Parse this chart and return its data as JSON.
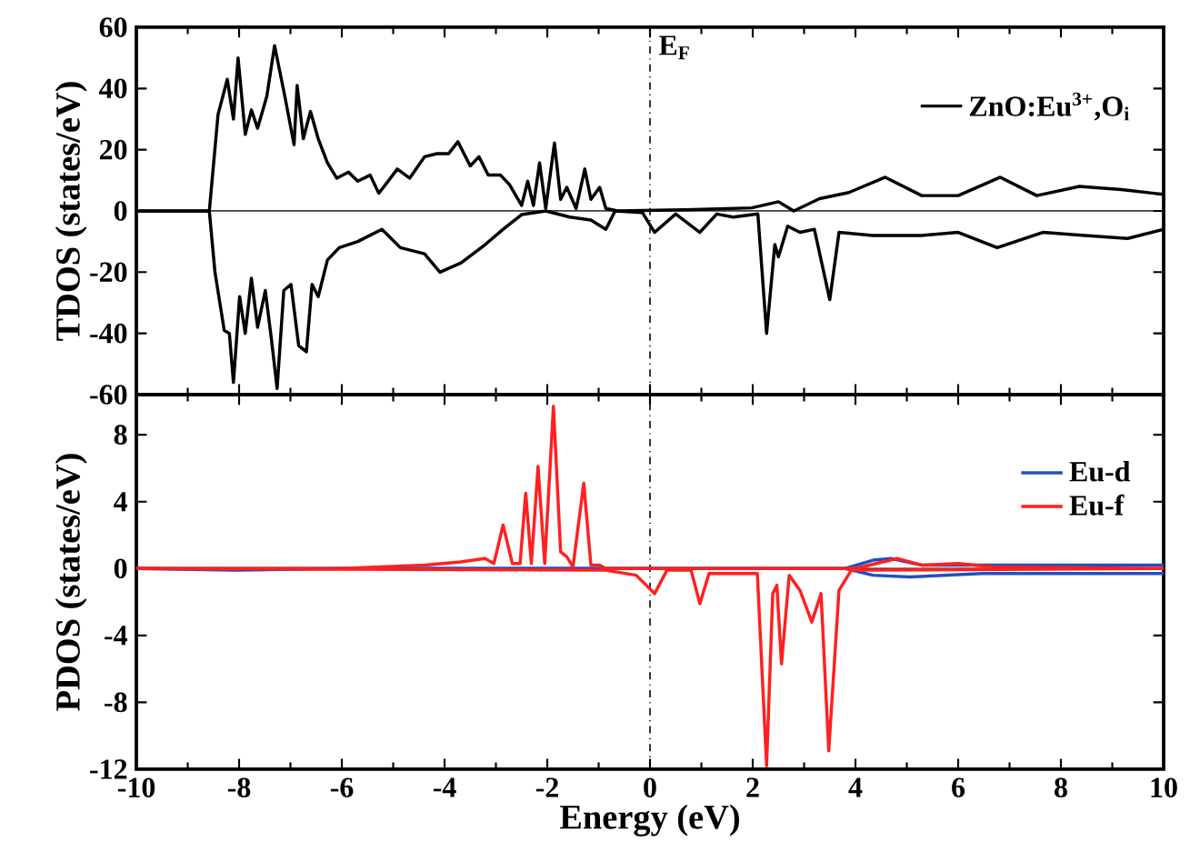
{
  "chart_data": [
    {
      "type": "line",
      "ylabel": "TDOS (states/eV)",
      "xlim": [
        -10,
        10
      ],
      "ylim": [
        -60,
        60
      ],
      "xticks": [
        -10,
        -8,
        -6,
        -4,
        -2,
        0,
        2,
        4,
        6,
        8,
        10
      ],
      "yticks": [
        -60,
        -40,
        -20,
        0,
        20,
        40,
        60
      ],
      "tick_labels": "y",
      "legend": "top right",
      "grid": false,
      "ref_lines": [
        {
          "axis": "x",
          "value": 0,
          "label": "E$_{F}$",
          "line_style": "dashdot",
          "color": "#000000"
        },
        {
          "axis": "y",
          "value": 0,
          "color": "#000000"
        }
      ],
      "series": [
        {
          "name": "ZnO:Eu$^{3+}$,O$_{i}$",
          "color": "#000000",
          "x": [
            -10,
            -8.58,
            -8.41,
            -8.23,
            -8.11,
            -8.02,
            -7.88,
            -7.76,
            -7.64,
            -7.46,
            -7.31,
            -7.11,
            -6.93,
            -6.87,
            -6.75,
            -6.61,
            -6.46,
            -6.28,
            -6.1,
            -5.87,
            -5.69,
            -5.45,
            -5.28,
            -5.1,
            -4.92,
            -4.68,
            -4.39,
            -4.15,
            -3.92,
            -3.74,
            -3.5,
            -3.33,
            -3.15,
            -2.91,
            -2.74,
            -2.5,
            -2.38,
            -2.27,
            -2.15,
            -2.03,
            -1.86,
            -1.74,
            -1.62,
            -1.44,
            -1.27,
            -1.15,
            -0.98,
            -0.86,
            -0.63,
            1.0,
            1.98,
            2.5,
            2.8,
            3.3,
            3.87,
            4.58,
            5.29,
            6.0,
            6.82,
            7.53,
            8.36,
            9.18,
            10
          ],
          "values": [
            0,
            0,
            31.5,
            43,
            30,
            50,
            25,
            33,
            27,
            37.5,
            54,
            37.5,
            21.6,
            41,
            23.6,
            32.5,
            23.6,
            15.7,
            10.7,
            12.7,
            9.7,
            11.7,
            5.8,
            9.7,
            13.7,
            10.7,
            17.7,
            18.7,
            18.7,
            22.6,
            14.7,
            17.7,
            11.7,
            11.7,
            8.7,
            1.8,
            9.7,
            1.8,
            15.7,
            0.8,
            22.2,
            3.8,
            7.7,
            0.8,
            13.7,
            3.8,
            7.7,
            0.8,
            0,
            0.5,
            1,
            3,
            0,
            4,
            6,
            11,
            5,
            5,
            11,
            5,
            8,
            7,
            5.4
          ]
        },
        {
          "color": "#000000",
          "x": [
            -10,
            -8.58,
            -8.47,
            -8.29,
            -8.19,
            -8.11,
            -7.99,
            -7.88,
            -7.76,
            -7.64,
            -7.49,
            -7.37,
            -7.26,
            -7.13,
            -6.99,
            -6.84,
            -6.69,
            -6.58,
            -6.46,
            -6.28,
            -6.05,
            -5.69,
            -5.22,
            -4.86,
            -4.39,
            -4.09,
            -3.68,
            -3.21,
            -2.86,
            -2.5,
            -2.03,
            -1.56,
            -1.15,
            -0.86,
            -0.68,
            -0.15,
            0.09,
            0.5,
            0.97,
            1.3,
            1.62,
            2.1,
            2.27,
            2.43,
            2.5,
            2.68,
            2.92,
            3.2,
            3.5,
            3.68,
            4.34,
            5.29,
            6.0,
            6.76,
            7.65,
            8.47,
            9.3,
            10
          ],
          "values": [
            0,
            0,
            -20,
            -39,
            -40,
            -56,
            -28,
            -40,
            -22,
            -38,
            -26,
            -42,
            -58,
            -26,
            -24,
            -44,
            -46,
            -24,
            -28,
            -16,
            -12,
            -10,
            -6,
            -12,
            -14,
            -20,
            -17,
            -11,
            -6,
            -1.2,
            0,
            -2,
            -3,
            -6,
            0,
            -0.5,
            -7,
            -1,
            -7,
            -1,
            -2,
            -1,
            -40,
            -11,
            -15,
            -5,
            -7,
            -6,
            -29,
            -7,
            -8,
            -8,
            -7,
            -12,
            -7,
            -8,
            -9,
            -6
          ]
        }
      ]
    },
    {
      "type": "line",
      "xlabel": "Energy (eV)",
      "ylabel": "PDOS (states/eV)",
      "xlim": [
        -10,
        10
      ],
      "ylim": [
        -12,
        10.4
      ],
      "xticks": [
        -10,
        -8,
        -6,
        -4,
        -2,
        0,
        2,
        4,
        6,
        8,
        10
      ],
      "yticks": [
        -12,
        -8,
        -4,
        0,
        4,
        8
      ],
      "legend": "top right",
      "grid": false,
      "ref_lines": [
        {
          "axis": "x",
          "value": 0,
          "line_style": "dashdot",
          "color": "#000000"
        },
        {
          "axis": "y",
          "value": 0,
          "color": "#000000"
        }
      ],
      "series": [
        {
          "name": "Eu-d",
          "color": "#2050c0",
          "x": [
            -10,
            -8,
            -6,
            -4,
            -2,
            0,
            2,
            3.8,
            4.34,
            4.69,
            5.3,
            7.65,
            9.4,
            10
          ],
          "values": [
            0,
            0,
            0,
            0,
            0,
            0,
            0,
            0,
            0.5,
            0.6,
            0.2,
            0.2,
            0.2,
            0.2
          ]
        },
        {
          "color": "#2050c0",
          "x": [
            -10,
            -8,
            -6,
            -4,
            -2,
            0,
            2,
            3.8,
            4.34,
            5.05,
            6.47,
            10
          ],
          "values": [
            0,
            -0.1,
            0,
            0,
            0,
            0,
            0,
            0,
            -0.4,
            -0.5,
            -0.3,
            -0.3
          ]
        },
        {
          "name": "Eu-f",
          "color": "#ff2020",
          "x": [
            -10,
            -6,
            -4.39,
            -3.68,
            -3.21,
            -3.04,
            -2.86,
            -2.68,
            -2.53,
            -2.42,
            -2.31,
            -2.18,
            -2.05,
            -1.88,
            -1.74,
            -1.62,
            -1.5,
            -1.29,
            -1.15,
            -0.98,
            -0.86,
            0,
            4,
            4.81,
            5.3,
            6.0,
            6.7,
            10
          ],
          "values": [
            0,
            0,
            0.2,
            0.4,
            0.6,
            0.3,
            2.6,
            0.3,
            0.3,
            4.5,
            0.3,
            6.1,
            0.3,
            9.7,
            1.0,
            0.7,
            0.1,
            5.1,
            0.2,
            0.2,
            0,
            0,
            0,
            0.6,
            0.2,
            0.3,
            0.1,
            0
          ]
        },
        {
          "color": "#ff2020",
          "x": [
            -10,
            -0.86,
            -0.27,
            0.09,
            0.33,
            0.8,
            0.97,
            1.15,
            2.09,
            2.27,
            2.39,
            2.47,
            2.56,
            2.71,
            2.92,
            3.15,
            3.33,
            3.48,
            3.68,
            3.92,
            10
          ],
          "values": [
            0,
            -0.1,
            -0.4,
            -1.5,
            -0.1,
            -0.1,
            -2.1,
            -0.3,
            -0.3,
            -11.8,
            -1.5,
            -1.0,
            -5.7,
            -0.4,
            -1.3,
            -3.2,
            -1.5,
            -10.9,
            -1.3,
            -0.1,
            0
          ]
        }
      ]
    }
  ]
}
